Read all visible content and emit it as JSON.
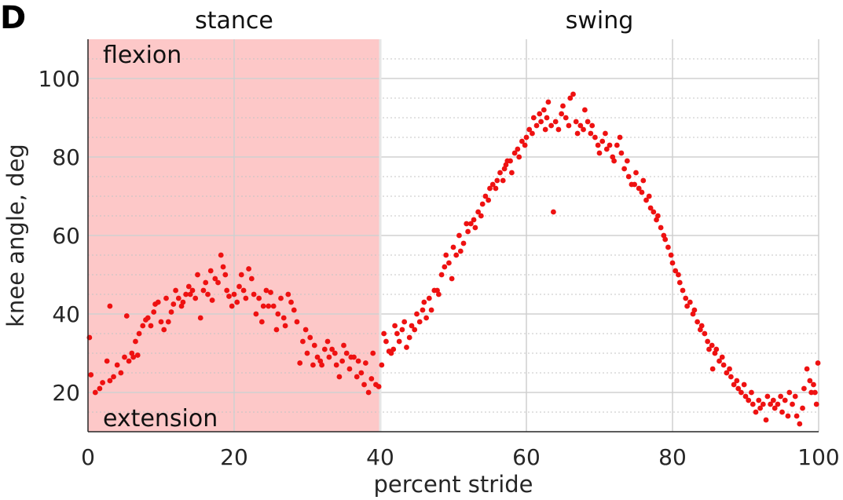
{
  "panel_label": "D",
  "chart_data": {
    "type": "scatter",
    "xlabel": "percent stride",
    "ylabel": "knee angle, deg",
    "xlim": [
      0,
      100
    ],
    "ylim": [
      10,
      110
    ],
    "xticks": [
      "0",
      "20",
      "40",
      "60",
      "80",
      "100"
    ],
    "yticks": [
      "20",
      "40",
      "60",
      "80",
      "100"
    ],
    "grid": true,
    "phases": [
      {
        "label": "stance",
        "start": 0,
        "end": 40,
        "shaded": true,
        "color": "#fdc8c8"
      },
      {
        "label": "swing",
        "start": 40,
        "end": 100,
        "shaded": false
      }
    ],
    "annotations": {
      "top": "flexion",
      "bottom": "extension"
    },
    "marker_color": "#ee1111",
    "points": [
      [
        0.2,
        34
      ],
      [
        0.4,
        24.5
      ],
      [
        1,
        20
      ],
      [
        1.6,
        21
      ],
      [
        2,
        22.5
      ],
      [
        2.6,
        28
      ],
      [
        3,
        23
      ],
      [
        3,
        42
      ],
      [
        3.5,
        24
      ],
      [
        4,
        27
      ],
      [
        4.5,
        25
      ],
      [
        5,
        29
      ],
      [
        5.3,
        39.5
      ],
      [
        5.6,
        28
      ],
      [
        6,
        30
      ],
      [
        6.2,
        29
      ],
      [
        6.5,
        33
      ],
      [
        6.8,
        29.5
      ],
      [
        7,
        35
      ],
      [
        7.5,
        37
      ],
      [
        7.9,
        38.5
      ],
      [
        8.2,
        39
      ],
      [
        8.6,
        37
      ],
      [
        9,
        40.5
      ],
      [
        9.2,
        42.5
      ],
      [
        9.6,
        43
      ],
      [
        10,
        38
      ],
      [
        10.4,
        36
      ],
      [
        10.7,
        44
      ],
      [
        11,
        38
      ],
      [
        11.4,
        40.5
      ],
      [
        11.7,
        42.5
      ],
      [
        12,
        46
      ],
      [
        12.4,
        44
      ],
      [
        12.8,
        42
      ],
      [
        13,
        43
      ],
      [
        13.4,
        45
      ],
      [
        13.8,
        47
      ],
      [
        14,
        45
      ],
      [
        14.3,
        46
      ],
      [
        14.7,
        44
      ],
      [
        15,
        50
      ],
      [
        15.4,
        39
      ],
      [
        15.8,
        46
      ],
      [
        16.1,
        48
      ],
      [
        16.4,
        45
      ],
      [
        16.8,
        51
      ],
      [
        17,
        43.5
      ],
      [
        17.4,
        49
      ],
      [
        17.8,
        48
      ],
      [
        18.2,
        55
      ],
      [
        18.5,
        52
      ],
      [
        18.8,
        50
      ],
      [
        19,
        46
      ],
      [
        19.3,
        44.5
      ],
      [
        19.7,
        42
      ],
      [
        20,
        45
      ],
      [
        20.4,
        43
      ],
      [
        20.7,
        47
      ],
      [
        21,
        50
      ],
      [
        21.3,
        46
      ],
      [
        21.6,
        44
      ],
      [
        22,
        51.5
      ],
      [
        22.4,
        49
      ],
      [
        22.7,
        45
      ],
      [
        23,
        40
      ],
      [
        23.4,
        44
      ],
      [
        23.8,
        38
      ],
      [
        24,
        42
      ],
      [
        24.4,
        46
      ],
      [
        24.7,
        42
      ],
      [
        25,
        45.5
      ],
      [
        25.4,
        42
      ],
      [
        25.8,
        36
      ],
      [
        26,
        40
      ],
      [
        26.4,
        44
      ],
      [
        26.8,
        39
      ],
      [
        27,
        37
      ],
      [
        27.4,
        45
      ],
      [
        27.8,
        43
      ],
      [
        28.2,
        41
      ],
      [
        28.6,
        38
      ],
      [
        29,
        27.5
      ],
      [
        29.4,
        33
      ],
      [
        29.8,
        36
      ],
      [
        30,
        30
      ],
      [
        30.4,
        34
      ],
      [
        30.8,
        27
      ],
      [
        31,
        32
      ],
      [
        31.4,
        29
      ],
      [
        31.8,
        28
      ],
      [
        32,
        27
      ],
      [
        32.4,
        31
      ],
      [
        32.8,
        33
      ],
      [
        33,
        29
      ],
      [
        33.4,
        31
      ],
      [
        33.8,
        30
      ],
      [
        34,
        27
      ],
      [
        34.4,
        24
      ],
      [
        34.8,
        28
      ],
      [
        35,
        32
      ],
      [
        35.4,
        30
      ],
      [
        35.8,
        26
      ],
      [
        36,
        29
      ],
      [
        36.4,
        29
      ],
      [
        36.8,
        24
      ],
      [
        37,
        28
      ],
      [
        37.4,
        25
      ],
      [
        37.8,
        22
      ],
      [
        38,
        27.5
      ],
      [
        38.4,
        20
      ],
      [
        38.8,
        23.5
      ],
      [
        39,
        30
      ],
      [
        39.4,
        22
      ],
      [
        39.8,
        21.5
      ],
      [
        40.2,
        27
      ],
      [
        40.5,
        35
      ],
      [
        40.8,
        33
      ],
      [
        41.2,
        30.5
      ],
      [
        41.5,
        30
      ],
      [
        41.8,
        31
      ],
      [
        42,
        37
      ],
      [
        42.3,
        35
      ],
      [
        42.6,
        33
      ],
      [
        43,
        36
      ],
      [
        43.3,
        38
      ],
      [
        43.6,
        31.5
      ],
      [
        44,
        34
      ],
      [
        44.3,
        37
      ],
      [
        44.7,
        36
      ],
      [
        45,
        40
      ],
      [
        45.4,
        38
      ],
      [
        45.8,
        41
      ],
      [
        46,
        43
      ],
      [
        46.3,
        39
      ],
      [
        46.7,
        44
      ],
      [
        47,
        41
      ],
      [
        47.4,
        46
      ],
      [
        47.8,
        46
      ],
      [
        48,
        45
      ],
      [
        48.4,
        50
      ],
      [
        48.8,
        52
      ],
      [
        49,
        55
      ],
      [
        49.4,
        53
      ],
      [
        49.8,
        49
      ],
      [
        50,
        57
      ],
      [
        50.4,
        55
      ],
      [
        50.8,
        60
      ],
      [
        51,
        56
      ],
      [
        51.4,
        58
      ],
      [
        51.8,
        63
      ],
      [
        52,
        61
      ],
      [
        52.4,
        63
      ],
      [
        52.8,
        64
      ],
      [
        53,
        62
      ],
      [
        53.4,
        66
      ],
      [
        53.8,
        65
      ],
      [
        54,
        68
      ],
      [
        54.4,
        70
      ],
      [
        54.8,
        69
      ],
      [
        55,
        72
      ],
      [
        55.4,
        73
      ],
      [
        55.8,
        72
      ],
      [
        56,
        74
      ],
      [
        56.4,
        76
      ],
      [
        56.8,
        74
      ],
      [
        57,
        77
      ],
      [
        57.4,
        79
      ],
      [
        57.8,
        79
      ],
      [
        58,
        76
      ],
      [
        58.4,
        81
      ],
      [
        58.8,
        82
      ],
      [
        59,
        80
      ],
      [
        59.4,
        84
      ],
      [
        59.8,
        83
      ],
      [
        60,
        85
      ],
      [
        60.4,
        87
      ],
      [
        60.8,
        86
      ],
      [
        61,
        90
      ],
      [
        61.4,
        88
      ],
      [
        61.8,
        91
      ],
      [
        62,
        89
      ],
      [
        62.4,
        92
      ],
      [
        62.8,
        90
      ],
      [
        63,
        94
      ],
      [
        63.4,
        88
      ],
      [
        63.7,
        66
      ],
      [
        64,
        89
      ],
      [
        64.4,
        87
      ],
      [
        64.8,
        91
      ],
      [
        65,
        93
      ],
      [
        65.4,
        90
      ],
      [
        65.8,
        88
      ],
      [
        66,
        95
      ],
      [
        66.4,
        96
      ],
      [
        66.8,
        89
      ],
      [
        67,
        86
      ],
      [
        67.4,
        88
      ],
      [
        67.8,
        87
      ],
      [
        68,
        92
      ],
      [
        68.4,
        89
      ],
      [
        68.8,
        86
      ],
      [
        69,
        88
      ],
      [
        69.4,
        85
      ],
      [
        69.8,
        83
      ],
      [
        70,
        81
      ],
      [
        70.4,
        84
      ],
      [
        70.8,
        86
      ],
      [
        71,
        82
      ],
      [
        71.4,
        83
      ],
      [
        71.8,
        80
      ],
      [
        72,
        79
      ],
      [
        72.4,
        83
      ],
      [
        72.8,
        85
      ],
      [
        73,
        81
      ],
      [
        73.4,
        77
      ],
      [
        73.8,
        79
      ],
      [
        74,
        75
      ],
      [
        74.4,
        73
      ],
      [
        74.8,
        73
      ],
      [
        75,
        76
      ],
      [
        75.4,
        72
      ],
      [
        75.8,
        71
      ],
      [
        76,
        74
      ],
      [
        76.4,
        69
      ],
      [
        76.8,
        70
      ],
      [
        77,
        67
      ],
      [
        77.4,
        66
      ],
      [
        77.8,
        64
      ],
      [
        78,
        65
      ],
      [
        78.4,
        62
      ],
      [
        78.8,
        60
      ],
      [
        79,
        59
      ],
      [
        79.4,
        57
      ],
      [
        79.8,
        55
      ],
      [
        80,
        53
      ],
      [
        80.4,
        51
      ],
      [
        80.8,
        50
      ],
      [
        81,
        48
      ],
      [
        81.4,
        46
      ],
      [
        81.8,
        44
      ],
      [
        82,
        42
      ],
      [
        82.4,
        43
      ],
      [
        82.8,
        40
      ],
      [
        83,
        41
      ],
      [
        83.4,
        38
      ],
      [
        83.8,
        36
      ],
      [
        84,
        37
      ],
      [
        84.4,
        35
      ],
      [
        84.8,
        33
      ],
      [
        85,
        31
      ],
      [
        85.4,
        32
      ],
      [
        85.8,
        30
      ],
      [
        86,
        31
      ],
      [
        86.4,
        28
      ],
      [
        86.8,
        29
      ],
      [
        87,
        27
      ],
      [
        87.4,
        25
      ],
      [
        87.8,
        26
      ],
      [
        88,
        24
      ],
      [
        88.4,
        22
      ],
      [
        88.8,
        23
      ],
      [
        89,
        21
      ],
      [
        89.4,
        20
      ],
      [
        89.8,
        22
      ],
      [
        90,
        19
      ],
      [
        90.4,
        18
      ],
      [
        90.8,
        20
      ],
      [
        91,
        17
      ],
      [
        91.4,
        15
      ],
      [
        91.8,
        18
      ],
      [
        92,
        16
      ],
      [
        92.4,
        17
      ],
      [
        92.8,
        13
      ],
      [
        93,
        19
      ],
      [
        93.4,
        17
      ],
      [
        93.8,
        18
      ],
      [
        94,
        16
      ],
      [
        94.4,
        17
      ],
      [
        94.8,
        19
      ],
      [
        95,
        15
      ],
      [
        95.4,
        18
      ],
      [
        95.8,
        14
      ],
      [
        96,
        20
      ],
      [
        96.4,
        17
      ],
      [
        96.8,
        19
      ],
      [
        97,
        14
      ],
      [
        97.4,
        12
      ],
      [
        97.8,
        16
      ],
      [
        98,
        21
      ],
      [
        98.4,
        26
      ],
      [
        98.8,
        23
      ],
      [
        99,
        20
      ],
      [
        99.3,
        22
      ],
      [
        99.5,
        20
      ],
      [
        99.7,
        17
      ],
      [
        99.9,
        27.5
      ],
      [
        85.5,
        26
      ],
      [
        62.6,
        87
      ],
      [
        57.2,
        78
      ]
    ]
  }
}
